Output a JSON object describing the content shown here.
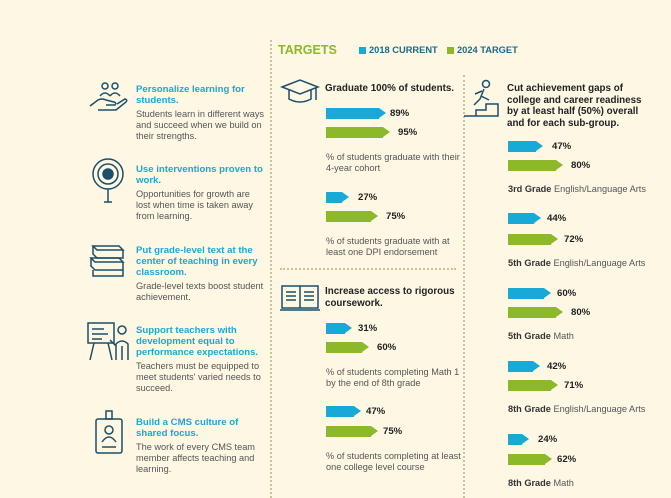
{
  "header": {
    "title": "TARGETS",
    "legend_current": "2018 CURRENT",
    "legend_target": "2024 TARGET",
    "colors": {
      "current": "#19a9d6",
      "target": "#8cb82a",
      "heading": "#19a9d6"
    }
  },
  "strategies": [
    {
      "icon": "hand-with-people-icon",
      "title": "Personalize learning for students.",
      "body": "Students learn in different ways and succeed when we build on their strengths."
    },
    {
      "icon": "target-head-icon",
      "title": "Use interventions proven to work.",
      "body": "Opportunities for growth are lost when time is taken away from learning."
    },
    {
      "icon": "stack-of-books-icon",
      "title": "Put grade-level text at the center of teaching in every classroom.",
      "body": "Grade-level texts boost student achievement."
    },
    {
      "icon": "teacher-at-board-icon",
      "title": "Support teachers with development equal to performance expectations.",
      "body": "Teachers must be equipped to meet students' varied needs to succeed."
    },
    {
      "icon": "id-badge-icon",
      "title": "Build a CMS culture of shared focus.",
      "body": "The work of every CMS team member affects teaching and learning."
    }
  ],
  "goals": {
    "graduate": {
      "icon": "graduation-cap-icon",
      "title": "Graduate 100% of students.",
      "metrics": [
        {
          "current": 89,
          "target": 95,
          "current_label": "89%",
          "target_label": "95%",
          "desc": "% of students graduate with their 4-year cohort"
        },
        {
          "current": 27,
          "target": 75,
          "current_label": "27%",
          "target_label": "75%",
          "desc": "% of students graduate with at least one DPI endorsement"
        }
      ]
    },
    "coursework": {
      "icon": "open-book-icon",
      "title": "Increase access to rigorous coursework.",
      "metrics": [
        {
          "current": 31,
          "target": 60,
          "current_label": "31%",
          "target_label": "60%",
          "desc": "% of students completing Math 1 by the end of 8th grade"
        },
        {
          "current": 47,
          "target": 75,
          "current_label": "47%",
          "target_label": "75%",
          "desc": "% of students completing at least one college level course"
        }
      ]
    },
    "gaps": {
      "icon": "climbing-stairs-icon",
      "title": "Cut achievement gaps of college and career readiness by at least half (50%) overall and for each sub-group.",
      "metrics": [
        {
          "current": 47,
          "target": 80,
          "current_label": "47%",
          "target_label": "80%",
          "grade": "3rd Grade",
          "subject": "English/Language Arts"
        },
        {
          "current": 44,
          "target": 72,
          "current_label": "44%",
          "target_label": "72%",
          "grade": "5th Grade",
          "subject": "English/Language Arts"
        },
        {
          "current": 60,
          "target": 80,
          "current_label": "60%",
          "target_label": "80%",
          "grade": "5th Grade",
          "subject": "Math"
        },
        {
          "current": 42,
          "target": 71,
          "current_label": "42%",
          "target_label": "71%",
          "grade": "8th Grade",
          "subject": "English/Language Arts"
        },
        {
          "current": 24,
          "target": 62,
          "current_label": "24%",
          "target_label": "62%",
          "grade": "8th Grade",
          "subject": "Math"
        }
      ]
    }
  }
}
